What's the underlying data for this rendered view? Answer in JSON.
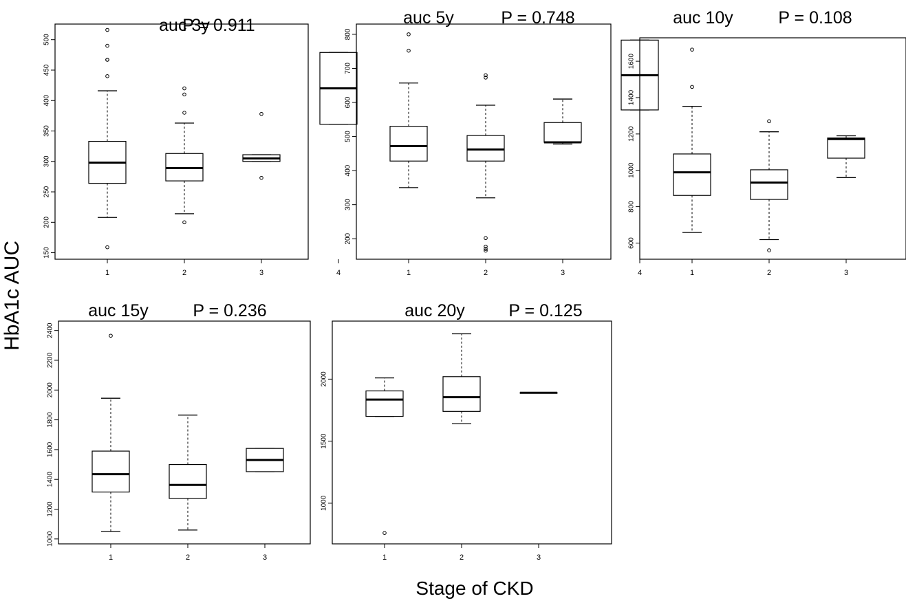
{
  "figure": {
    "ylabel": "HbA1c AUC",
    "xlabel": "Stage of CKD"
  },
  "chart_data": [
    {
      "type": "boxplot",
      "title": "auc 3y",
      "p_value": "P = 0.911",
      "categories": [
        "1",
        "2",
        "3",
        "4"
      ],
      "yticks": [
        150,
        200,
        250,
        300,
        350,
        400,
        450,
        500
      ],
      "ylim": [
        145,
        520
      ],
      "boxes": [
        {
          "lower_whisker": 208,
          "q1": 264,
          "median": 298,
          "q3": 333,
          "upper_whisker": 416,
          "outliers": [
            159,
            440,
            467,
            467,
            490,
            516
          ]
        },
        {
          "lower_whisker": 214,
          "q1": 268,
          "median": 289,
          "q3": 313,
          "upper_whisker": 363,
          "outliers": [
            200,
            380,
            410,
            420
          ]
        },
        {
          "lower_whisker": 300,
          "q1": 300,
          "median": 305,
          "q3": 311,
          "upper_whisker": 311,
          "outliers": [
            273,
            378
          ]
        },
        {
          "lower_whisker": 361,
          "q1": 361,
          "median": 420,
          "q3": 479,
          "upper_whisker": 479,
          "outliers": []
        }
      ]
    },
    {
      "type": "boxplot",
      "title": "auc 5y",
      "p_value": "P = 0.748",
      "categories": [
        "1",
        "2",
        "3",
        "4"
      ],
      "yticks": [
        200,
        300,
        400,
        500,
        600,
        700,
        800
      ],
      "ylim": [
        150,
        820
      ],
      "boxes": [
        {
          "lower_whisker": 350,
          "q1": 428,
          "median": 472,
          "q3": 530,
          "upper_whisker": 657,
          "outliers": [
            752,
            800
          ]
        },
        {
          "lower_whisker": 320,
          "q1": 428,
          "median": 462,
          "q3": 503,
          "upper_whisker": 592,
          "outliers": [
            165,
            170,
            177,
            202,
            673,
            680
          ]
        },
        {
          "lower_whisker": 478,
          "q1": 483,
          "median": 483,
          "q3": 541,
          "upper_whisker": 610,
          "outliers": []
        },
        {
          "lower_whisker": 578,
          "q1": 578,
          "median": 680,
          "q3": 783,
          "upper_whisker": 783,
          "outliers": []
        }
      ]
    },
    {
      "type": "boxplot",
      "title": "auc 10y",
      "p_value": "P = 0.108",
      "categories": [
        "1",
        "2",
        "3"
      ],
      "yticks": [
        600,
        800,
        1000,
        1200,
        1400,
        1600
      ],
      "ylim": [
        530,
        1710
      ],
      "boxes": [
        {
          "lower_whisker": 658,
          "q1": 862,
          "median": 989,
          "q3": 1090,
          "upper_whisker": 1352,
          "outliers": [
            1459,
            1664
          ]
        },
        {
          "lower_whisker": 619,
          "q1": 840,
          "median": 933,
          "q3": 1003,
          "upper_whisker": 1212,
          "outliers": [
            560,
            1270
          ]
        },
        {
          "lower_whisker": 960,
          "q1": 1067,
          "median": 1172,
          "q3": 1178,
          "upper_whisker": 1190,
          "outliers": []
        }
      ]
    },
    {
      "type": "boxplot",
      "title": "auc 15y",
      "p_value": "P = 0.236",
      "categories": [
        "1",
        "2",
        "3"
      ],
      "yticks": [
        1000,
        1200,
        1400,
        1600,
        1800,
        2000,
        2200,
        2400
      ],
      "ylim": [
        990,
        2440
      ],
      "boxes": [
        {
          "lower_whisker": 1050,
          "q1": 1315,
          "median": 1435,
          "q3": 1590,
          "upper_whisker": 1945,
          "outliers": [
            2365
          ]
        },
        {
          "lower_whisker": 1060,
          "q1": 1272,
          "median": 1363,
          "q3": 1500,
          "upper_whisker": 1832,
          "outliers": []
        },
        {
          "lower_whisker": 1452,
          "q1": 1452,
          "median": 1530,
          "q3": 1608,
          "upper_whisker": 1608,
          "outliers": []
        }
      ]
    },
    {
      "type": "boxplot",
      "title": "auc 20y",
      "p_value": "P = 0.125",
      "categories": [
        "1",
        "2",
        "3"
      ],
      "yticks": [
        1000,
        1500,
        2000
      ],
      "ylim": [
        700,
        2440
      ],
      "boxes": [
        {
          "lower_whisker": 1700,
          "q1": 1700,
          "median": 1835,
          "q3": 1905,
          "upper_whisker": 2010,
          "outliers": [
            760
          ]
        },
        {
          "lower_whisker": 1640,
          "q1": 1740,
          "median": 1855,
          "q3": 2020,
          "upper_whisker": 2365,
          "outliers": []
        },
        {
          "lower_whisker": 1890,
          "q1": 1890,
          "median": 1890,
          "q3": 1890,
          "upper_whisker": 1890,
          "outliers": []
        }
      ]
    }
  ]
}
